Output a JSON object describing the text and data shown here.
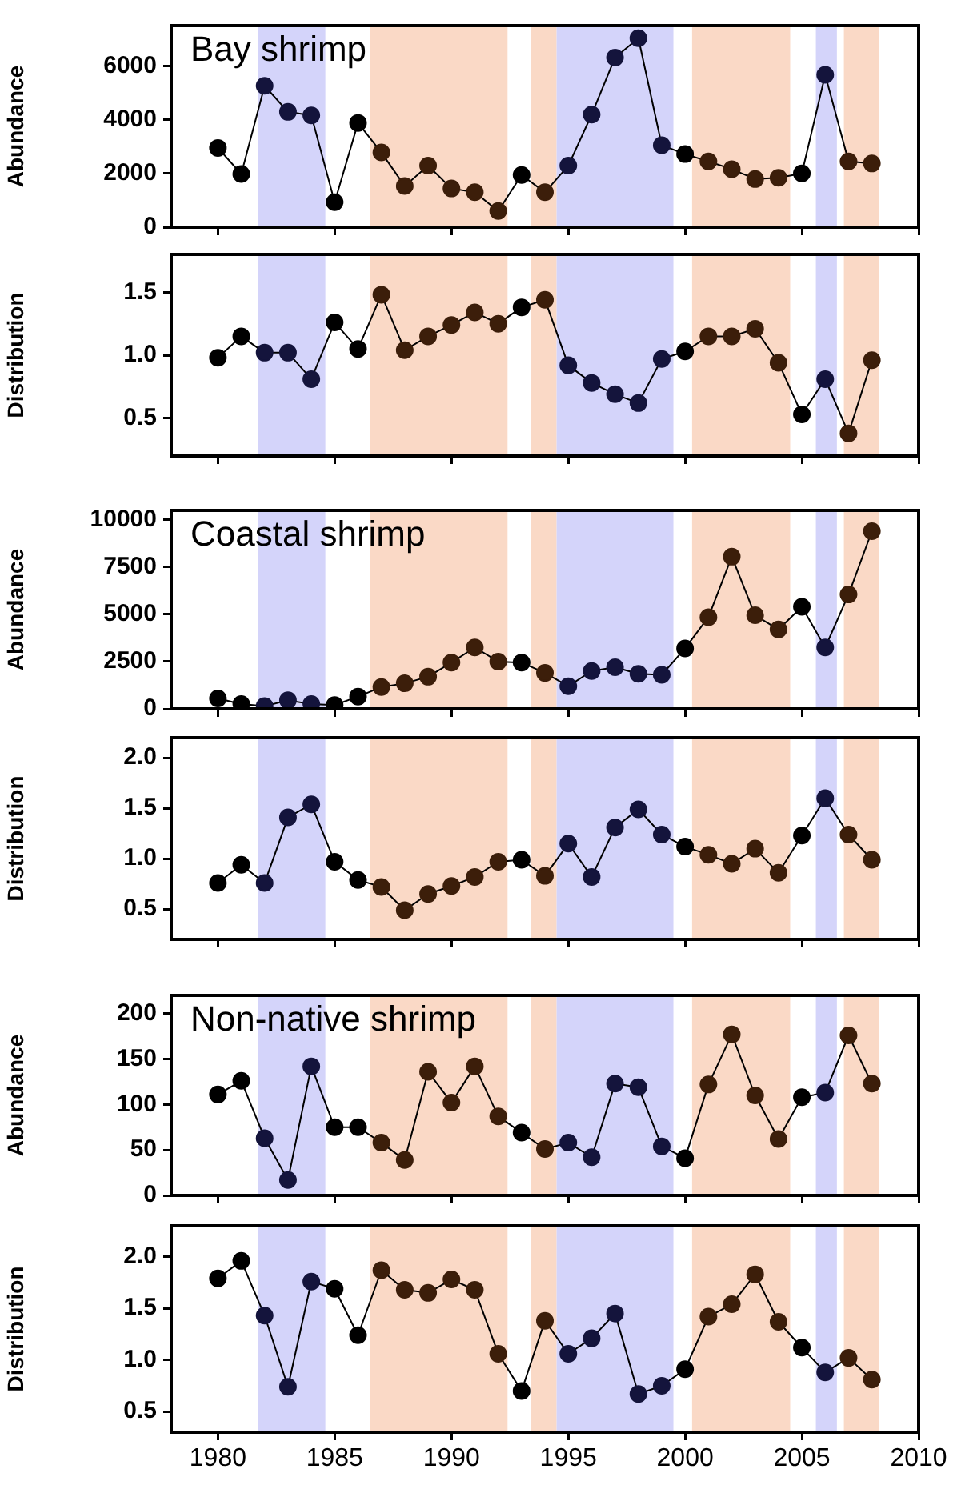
{
  "chart_data": [
    {
      "type": "line",
      "title": "Bay shrimp",
      "ylabel": "Abundance",
      "x": [
        1980,
        1981,
        1982,
        1983,
        1984,
        1985,
        1986,
        1987,
        1988,
        1989,
        1990,
        1991,
        1992,
        1993,
        1994,
        1995,
        1996,
        1997,
        1998,
        1999,
        2000,
        2001,
        2002,
        2003,
        2004,
        2005,
        2006,
        2007,
        2008
      ],
      "series": [
        {
          "color": "#000000",
          "colors": [
            "#000000",
            "#000000",
            "#14143c",
            "#14143c",
            "#14143c",
            "#000000",
            "#000000",
            "#3c1e0a",
            "#3c1e0a",
            "#3c1e0a",
            "#3c1e0a",
            "#3c1e0a",
            "#3c1e0a",
            "#000000",
            "#3c1e0a",
            "#14143c",
            "#14143c",
            "#14143c",
            "#14143c",
            "#14143c",
            "#000000",
            "#3c1e0a",
            "#3c1e0a",
            "#3c1e0a",
            "#3c1e0a",
            "#000000",
            "#14143c",
            "#3c1e0a",
            "#3c1e0a"
          ],
          "values": [
            2950,
            1980,
            5260,
            4290,
            4160,
            930,
            3880,
            2780,
            1530,
            2290,
            1440,
            1300,
            600,
            1940,
            1300,
            2290,
            4190,
            6310,
            7030,
            3050,
            2720,
            2450,
            2160,
            1790,
            1840,
            2000,
            5670,
            2450,
            2370
          ]
        }
      ],
      "xlim": [
        1978,
        2010
      ],
      "xticks": [
        1980,
        1985,
        1990,
        1995,
        2000,
        2005,
        2010
      ],
      "ylim": [
        0,
        7500
      ],
      "yticks": [
        0,
        2000,
        4000,
        6000
      ],
      "tick_labels": "y",
      "marker": "circle",
      "grid": false,
      "legend": false,
      "bands": [
        {
          "axis": "x",
          "from": 1981.7,
          "to": 1984.6,
          "color": "#d4d4fa"
        },
        {
          "axis": "x",
          "from": 1986.5,
          "to": 1992.4,
          "color": "#fad9c6"
        },
        {
          "axis": "x",
          "from": 1993.4,
          "to": 1994.5,
          "color": "#fad9c6"
        },
        {
          "axis": "x",
          "from": 1994.5,
          "to": 1999.5,
          "color": "#d4d4fa"
        },
        {
          "axis": "x",
          "from": 2000.3,
          "to": 2004.5,
          "color": "#fad9c6"
        },
        {
          "axis": "x",
          "from": 2005.6,
          "to": 2006.5,
          "color": "#d4d4fa"
        },
        {
          "axis": "x",
          "from": 2006.8,
          "to": 2008.3,
          "color": "#fad9c6"
        }
      ]
    },
    {
      "type": "line",
      "ylabel": "Distribution",
      "x": [
        1980,
        1981,
        1982,
        1983,
        1984,
        1985,
        1986,
        1987,
        1988,
        1989,
        1990,
        1991,
        1992,
        1993,
        1994,
        1995,
        1996,
        1997,
        1998,
        1999,
        2000,
        2001,
        2002,
        2003,
        2004,
        2005,
        2006,
        2007,
        2008
      ],
      "series": [
        {
          "color": "#000000",
          "colors": [
            "#000000",
            "#000000",
            "#14143c",
            "#14143c",
            "#14143c",
            "#000000",
            "#000000",
            "#3c1e0a",
            "#3c1e0a",
            "#3c1e0a",
            "#3c1e0a",
            "#3c1e0a",
            "#3c1e0a",
            "#000000",
            "#3c1e0a",
            "#14143c",
            "#14143c",
            "#14143c",
            "#14143c",
            "#14143c",
            "#000000",
            "#3c1e0a",
            "#3c1e0a",
            "#3c1e0a",
            "#3c1e0a",
            "#000000",
            "#14143c",
            "#3c1e0a",
            "#3c1e0a"
          ],
          "values": [
            0.98,
            1.15,
            1.02,
            1.02,
            0.81,
            1.26,
            1.05,
            1.48,
            1.04,
            1.15,
            1.24,
            1.34,
            1.25,
            1.38,
            1.44,
            0.92,
            0.78,
            0.69,
            0.62,
            0.97,
            1.03,
            1.15,
            1.15,
            1.21,
            0.94,
            0.53,
            0.81,
            0.38,
            0.96
          ]
        }
      ],
      "xlim": [
        1978,
        2010
      ],
      "xticks": [
        1980,
        1985,
        1990,
        1995,
        2000,
        2005,
        2010
      ],
      "ylim": [
        0.2,
        1.8
      ],
      "yticks": [
        {
          "value": 0.5,
          "label": "0.5"
        },
        {
          "value": 1,
          "label": "1.0"
        },
        {
          "value": 1.5,
          "label": "1.5"
        }
      ],
      "tick_labels": "y",
      "marker": "circle",
      "grid": false,
      "legend": false,
      "bands": [
        {
          "axis": "x",
          "from": 1981.7,
          "to": 1984.6,
          "color": "#d4d4fa"
        },
        {
          "axis": "x",
          "from": 1986.5,
          "to": 1992.4,
          "color": "#fad9c6"
        },
        {
          "axis": "x",
          "from": 1993.4,
          "to": 1994.5,
          "color": "#fad9c6"
        },
        {
          "axis": "x",
          "from": 1994.5,
          "to": 1999.5,
          "color": "#d4d4fa"
        },
        {
          "axis": "x",
          "from": 2000.3,
          "to": 2004.5,
          "color": "#fad9c6"
        },
        {
          "axis": "x",
          "from": 2005.6,
          "to": 2006.5,
          "color": "#d4d4fa"
        },
        {
          "axis": "x",
          "from": 2006.8,
          "to": 2008.3,
          "color": "#fad9c6"
        }
      ]
    },
    {
      "type": "line",
      "title": "Coastal shrimp",
      "ylabel": "Abundance",
      "x": [
        1980,
        1981,
        1982,
        1983,
        1984,
        1985,
        1986,
        1987,
        1988,
        1989,
        1990,
        1991,
        1992,
        1993,
        1994,
        1995,
        1996,
        1997,
        1998,
        1999,
        2000,
        2001,
        2002,
        2003,
        2004,
        2005,
        2006,
        2007,
        2008
      ],
      "series": [
        {
          "color": "#000000",
          "colors": [
            "#000000",
            "#000000",
            "#14143c",
            "#14143c",
            "#14143c",
            "#000000",
            "#000000",
            "#3c1e0a",
            "#3c1e0a",
            "#3c1e0a",
            "#3c1e0a",
            "#3c1e0a",
            "#3c1e0a",
            "#000000",
            "#3c1e0a",
            "#14143c",
            "#14143c",
            "#14143c",
            "#14143c",
            "#14143c",
            "#000000",
            "#3c1e0a",
            "#3c1e0a",
            "#3c1e0a",
            "#3c1e0a",
            "#000000",
            "#14143c",
            "#3c1e0a",
            "#3c1e0a"
          ],
          "values": [
            550,
            250,
            150,
            450,
            250,
            200,
            650,
            1150,
            1350,
            1700,
            2450,
            3250,
            2500,
            2450,
            1900,
            1200,
            2000,
            2200,
            1850,
            1800,
            3200,
            4850,
            8050,
            4950,
            4200,
            5400,
            3250,
            6050,
            9400
          ]
        }
      ],
      "xlim": [
        1978,
        2010
      ],
      "xticks": [
        1980,
        1985,
        1990,
        1995,
        2000,
        2005,
        2010
      ],
      "ylim": [
        0,
        10500
      ],
      "yticks": [
        0,
        2500,
        5000,
        7500,
        10000
      ],
      "tick_labels": "y",
      "marker": "circle",
      "grid": false,
      "legend": false,
      "bands": [
        {
          "axis": "x",
          "from": 1981.7,
          "to": 1984.6,
          "color": "#d4d4fa"
        },
        {
          "axis": "x",
          "from": 1986.5,
          "to": 1992.4,
          "color": "#fad9c6"
        },
        {
          "axis": "x",
          "from": 1993.4,
          "to": 1994.5,
          "color": "#fad9c6"
        },
        {
          "axis": "x",
          "from": 1994.5,
          "to": 1999.5,
          "color": "#d4d4fa"
        },
        {
          "axis": "x",
          "from": 2000.3,
          "to": 2004.5,
          "color": "#fad9c6"
        },
        {
          "axis": "x",
          "from": 2005.6,
          "to": 2006.5,
          "color": "#d4d4fa"
        },
        {
          "axis": "x",
          "from": 2006.8,
          "to": 2008.3,
          "color": "#fad9c6"
        }
      ]
    },
    {
      "type": "line",
      "ylabel": "Distribution",
      "x": [
        1980,
        1981,
        1982,
        1983,
        1984,
        1985,
        1986,
        1987,
        1988,
        1989,
        1990,
        1991,
        1992,
        1993,
        1994,
        1995,
        1996,
        1997,
        1998,
        1999,
        2000,
        2001,
        2002,
        2003,
        2004,
        2005,
        2006,
        2007,
        2008
      ],
      "series": [
        {
          "color": "#000000",
          "colors": [
            "#000000",
            "#000000",
            "#14143c",
            "#14143c",
            "#14143c",
            "#000000",
            "#000000",
            "#3c1e0a",
            "#3c1e0a",
            "#3c1e0a",
            "#3c1e0a",
            "#3c1e0a",
            "#3c1e0a",
            "#000000",
            "#3c1e0a",
            "#14143c",
            "#14143c",
            "#14143c",
            "#14143c",
            "#14143c",
            "#000000",
            "#3c1e0a",
            "#3c1e0a",
            "#3c1e0a",
            "#3c1e0a",
            "#000000",
            "#14143c",
            "#3c1e0a",
            "#3c1e0a"
          ],
          "values": [
            0.76,
            0.94,
            0.76,
            1.41,
            1.54,
            0.97,
            0.79,
            0.72,
            0.49,
            0.65,
            0.73,
            0.82,
            0.97,
            0.99,
            0.83,
            1.15,
            0.82,
            1.31,
            1.49,
            1.24,
            1.12,
            1.04,
            0.95,
            1.1,
            0.86,
            1.23,
            1.6,
            1.24,
            0.99
          ]
        }
      ],
      "xlim": [
        1978,
        2010
      ],
      "xticks": [
        1980,
        1985,
        1990,
        1995,
        2000,
        2005,
        2010
      ],
      "ylim": [
        0.2,
        2.2
      ],
      "yticks": [
        {
          "value": 0.5,
          "label": "0.5"
        },
        {
          "value": 1,
          "label": "1.0"
        },
        {
          "value": 1.5,
          "label": "1.5"
        },
        {
          "value": 2,
          "label": "2.0"
        }
      ],
      "tick_labels": "y",
      "marker": "circle",
      "grid": false,
      "legend": false,
      "bands": [
        {
          "axis": "x",
          "from": 1981.7,
          "to": 1984.6,
          "color": "#d4d4fa"
        },
        {
          "axis": "x",
          "from": 1986.5,
          "to": 1992.4,
          "color": "#fad9c6"
        },
        {
          "axis": "x",
          "from": 1993.4,
          "to": 1994.5,
          "color": "#fad9c6"
        },
        {
          "axis": "x",
          "from": 1994.5,
          "to": 1999.5,
          "color": "#d4d4fa"
        },
        {
          "axis": "x",
          "from": 2000.3,
          "to": 2004.5,
          "color": "#fad9c6"
        },
        {
          "axis": "x",
          "from": 2005.6,
          "to": 2006.5,
          "color": "#d4d4fa"
        },
        {
          "axis": "x",
          "from": 2006.8,
          "to": 2008.3,
          "color": "#fad9c6"
        }
      ]
    },
    {
      "type": "line",
      "title": "Non-native shrimp",
      "ylabel": "Abundance",
      "x": [
        1980,
        1981,
        1982,
        1983,
        1984,
        1985,
        1986,
        1987,
        1988,
        1989,
        1990,
        1991,
        1992,
        1993,
        1994,
        1995,
        1996,
        1997,
        1998,
        1999,
        2000,
        2001,
        2002,
        2003,
        2004,
        2005,
        2006,
        2007,
        2008
      ],
      "series": [
        {
          "color": "#000000",
          "colors": [
            "#000000",
            "#000000",
            "#14143c",
            "#14143c",
            "#14143c",
            "#000000",
            "#000000",
            "#3c1e0a",
            "#3c1e0a",
            "#3c1e0a",
            "#3c1e0a",
            "#3c1e0a",
            "#3c1e0a",
            "#000000",
            "#3c1e0a",
            "#14143c",
            "#14143c",
            "#14143c",
            "#14143c",
            "#14143c",
            "#000000",
            "#3c1e0a",
            "#3c1e0a",
            "#3c1e0a",
            "#3c1e0a",
            "#000000",
            "#14143c",
            "#3c1e0a",
            "#3c1e0a"
          ],
          "values": [
            111,
            126,
            63,
            17,
            142,
            75,
            75,
            58,
            39,
            136,
            102,
            142,
            87,
            69,
            51,
            58,
            42,
            123,
            119,
            54,
            41,
            122,
            177,
            110,
            62,
            108,
            113,
            176,
            123
          ]
        }
      ],
      "xlim": [
        1978,
        2010
      ],
      "xticks": [
        1980,
        1985,
        1990,
        1995,
        2000,
        2005,
        2010
      ],
      "ylim": [
        0,
        220
      ],
      "yticks": [
        0,
        50,
        100,
        150,
        200
      ],
      "tick_labels": "y",
      "marker": "circle",
      "grid": false,
      "legend": false,
      "bands": [
        {
          "axis": "x",
          "from": 1981.7,
          "to": 1984.6,
          "color": "#d4d4fa"
        },
        {
          "axis": "x",
          "from": 1986.5,
          "to": 1992.4,
          "color": "#fad9c6"
        },
        {
          "axis": "x",
          "from": 1993.4,
          "to": 1994.5,
          "color": "#fad9c6"
        },
        {
          "axis": "x",
          "from": 1994.5,
          "to": 1999.5,
          "color": "#d4d4fa"
        },
        {
          "axis": "x",
          "from": 2000.3,
          "to": 2004.5,
          "color": "#fad9c6"
        },
        {
          "axis": "x",
          "from": 2005.6,
          "to": 2006.5,
          "color": "#d4d4fa"
        },
        {
          "axis": "x",
          "from": 2006.8,
          "to": 2008.3,
          "color": "#fad9c6"
        }
      ]
    },
    {
      "type": "line",
      "ylabel": "Distribution",
      "x": [
        1980,
        1981,
        1982,
        1983,
        1984,
        1985,
        1986,
        1987,
        1988,
        1989,
        1990,
        1991,
        1992,
        1993,
        1994,
        1995,
        1996,
        1997,
        1998,
        1999,
        2000,
        2001,
        2002,
        2003,
        2004,
        2005,
        2006,
        2007,
        2008
      ],
      "series": [
        {
          "color": "#000000",
          "colors": [
            "#000000",
            "#000000",
            "#14143c",
            "#14143c",
            "#14143c",
            "#000000",
            "#000000",
            "#3c1e0a",
            "#3c1e0a",
            "#3c1e0a",
            "#3c1e0a",
            "#3c1e0a",
            "#3c1e0a",
            "#000000",
            "#3c1e0a",
            "#14143c",
            "#14143c",
            "#14143c",
            "#14143c",
            "#14143c",
            "#000000",
            "#3c1e0a",
            "#3c1e0a",
            "#3c1e0a",
            "#3c1e0a",
            "#000000",
            "#14143c",
            "#3c1e0a",
            "#3c1e0a"
          ],
          "values": [
            1.79,
            1.96,
            1.43,
            0.74,
            1.76,
            1.69,
            1.24,
            1.87,
            1.68,
            1.65,
            1.78,
            1.68,
            1.06,
            0.7,
            1.38,
            1.06,
            1.21,
            1.45,
            0.67,
            0.75,
            0.91,
            1.42,
            1.54,
            1.83,
            1.37,
            1.12,
            0.88,
            1.02,
            0.81
          ]
        }
      ],
      "xlim": [
        1978,
        2010
      ],
      "xticks": [
        1980,
        1985,
        1990,
        1995,
        2000,
        2005,
        2010
      ],
      "ylim": [
        0.3,
        2.3
      ],
      "yticks": [
        {
          "value": 0.5,
          "label": "0.5"
        },
        {
          "value": 1,
          "label": "1.0"
        },
        {
          "value": 1.5,
          "label": "1.5"
        },
        {
          "value": 2,
          "label": "2.0"
        }
      ],
      "marker": "circle",
      "grid": false,
      "legend": false,
      "bands": [
        {
          "axis": "x",
          "from": 1981.7,
          "to": 1984.6,
          "color": "#d4d4fa"
        },
        {
          "axis": "x",
          "from": 1986.5,
          "to": 1992.4,
          "color": "#fad9c6"
        },
        {
          "axis": "x",
          "from": 1993.4,
          "to": 1994.5,
          "color": "#fad9c6"
        },
        {
          "axis": "x",
          "from": 1994.5,
          "to": 1999.5,
          "color": "#d4d4fa"
        },
        {
          "axis": "x",
          "from": 2000.3,
          "to": 2004.5,
          "color": "#fad9c6"
        },
        {
          "axis": "x",
          "from": 2005.6,
          "to": 2006.5,
          "color": "#d4d4fa"
        },
        {
          "axis": "x",
          "from": 2006.8,
          "to": 2008.3,
          "color": "#fad9c6"
        }
      ]
    }
  ]
}
